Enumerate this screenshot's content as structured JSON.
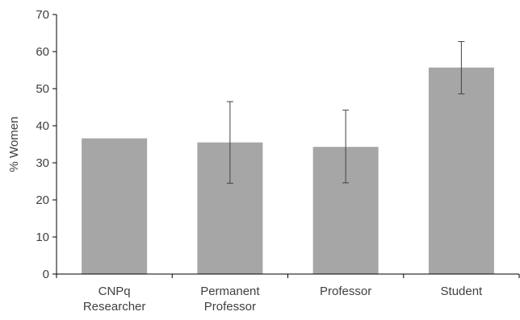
{
  "chart_data": {
    "type": "bar",
    "title": "",
    "xlabel": "",
    "ylabel": "% Women",
    "ylim": [
      0,
      70
    ],
    "yticks": [
      0,
      10,
      20,
      30,
      40,
      50,
      60,
      70
    ],
    "grid": false,
    "categories": [
      [
        "CNPq",
        "Researcher"
      ],
      [
        "Permanent",
        "Professor"
      ],
      [
        "Professor"
      ],
      [
        "Student"
      ]
    ],
    "values": [
      36.6,
      35.5,
      34.3,
      55.7
    ],
    "error_low": [
      null,
      24.5,
      24.6,
      48.6
    ],
    "error_high": [
      null,
      46.5,
      44.2,
      62.7
    ],
    "colors": {
      "bar": "#a6a6a6",
      "axis": "#000000",
      "error_bar": "#404040",
      "text": "#404040"
    }
  }
}
